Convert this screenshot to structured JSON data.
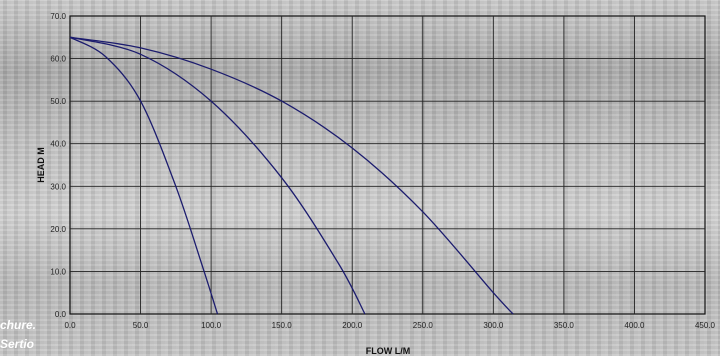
{
  "side_caption": {
    "line1": "chure.",
    "line2": "Sertio"
  },
  "chart_data": {
    "type": "line",
    "title": "",
    "xlabel": "FLOW L/M",
    "ylabel": "HEAD M",
    "xlim": [
      0,
      450
    ],
    "ylim": [
      0,
      70
    ],
    "x_ticks": [
      "0.0",
      "50.0",
      "100.0",
      "150.0",
      "200.0",
      "250.0",
      "300.0",
      "350.0",
      "400.0",
      "450.0"
    ],
    "y_ticks": [
      "0.0",
      "10.0",
      "20.0",
      "30.0",
      "40.0",
      "50.0",
      "60.0",
      "70.0"
    ],
    "grid": true,
    "line_color": "#1c1c6e",
    "series": [
      {
        "x": [
          0,
          25,
          50,
          75,
          95,
          104.5
        ],
        "y": [
          65,
          60.5,
          50,
          30,
          10,
          0
        ]
      },
      {
        "x": [
          0,
          50,
          100,
          150,
          190,
          209
        ],
        "y": [
          65,
          61,
          50,
          32,
          12,
          0
        ]
      },
      {
        "x": [
          0,
          50,
          100,
          150,
          200,
          250,
          300,
          314
        ],
        "y": [
          65,
          62.5,
          57.5,
          50,
          39,
          24,
          5,
          0
        ]
      }
    ]
  }
}
